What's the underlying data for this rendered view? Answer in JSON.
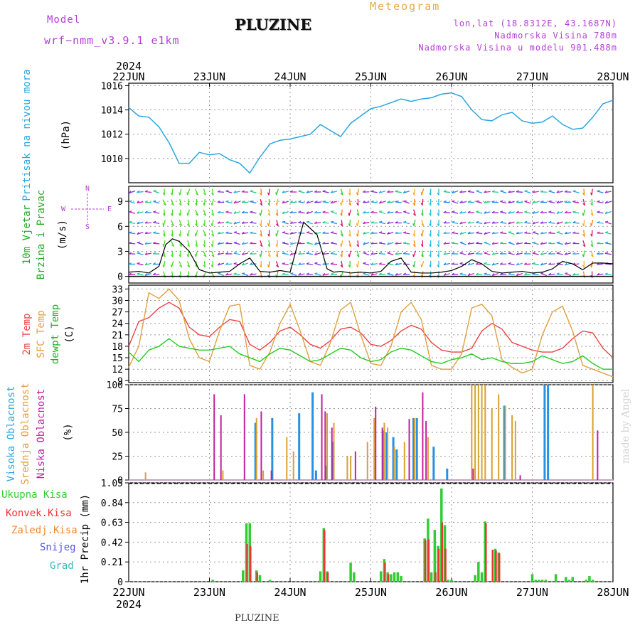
{
  "header": {
    "model_label": "Model",
    "model_run": "wrf−nmm_v3.9.1  e1km",
    "meteogram_label": "Meteogram",
    "station_title": "PLUZINE",
    "lonlat": "lon,lat (18.8312E, 43.1687N)",
    "altitude": "Nadmorska Visina 780m",
    "model_altitude": "Nadmorska Visina u modelu 901.488m"
  },
  "footer": {
    "station": "PLUZINE"
  },
  "watermark": "made by Angel",
  "time_axis": {
    "year": "2024",
    "ticks": [
      "22JUN",
      "23JUN",
      "24JUN",
      "25JUN",
      "26JUN",
      "27JUN",
      "28JUN"
    ],
    "start": "2024-06-22T00:00",
    "end": "2024-06-28T00:00"
  },
  "colors": {
    "pressure": "#2aa7e0",
    "wind_green": "#22cc22",
    "wind_black": "#000000",
    "wind_red": "#ff3333",
    "temp_2m": "#ee4444",
    "temp_sfc": "#e0a040",
    "temp_dew": "#22cc22",
    "cloud_high": "#2a90e0",
    "cloud_mid": "#d8a030",
    "cloud_low": "#c020a0",
    "precip_total": "#33cc33",
    "precip_conv": "#ee3333",
    "precip_frozen": "#ee8833",
    "precip_snow": "#5555dd",
    "precip_graupel": "#33bbbb",
    "grid": "#999999"
  },
  "panels": {
    "pressure": {
      "label": "Pritisak na nivou mora",
      "unit": "(hPa)"
    },
    "wind": {
      "label1": "10m Vjetar",
      "label2": "Brzina i Pravac",
      "unit": "(m/s)",
      "rose_n": "N",
      "rose_s": "S",
      "rose_e": "E",
      "rose_w": "W"
    },
    "temp": {
      "label1": "2m Temp",
      "label2": "SFC Temp",
      "label3": "dewpt Temp",
      "unit": "(C)"
    },
    "cloud": {
      "label1": "Visoka Oblacnost",
      "label2": "Srednja Oblacnost",
      "label3": "Niska Oblacnost",
      "unit": "(%)"
    },
    "precip": {
      "label_total": "Ukupna Kisa",
      "label_conv": "Konvek.Kisa",
      "label_frozen": "Zaledj.Kisa",
      "label_snow": "Snijeg",
      "label_graupel": "Grad",
      "unit": "1hr Precip (mm)"
    }
  },
  "chart_data": [
    {
      "type": "line",
      "title": "Pritisak na nivou mora",
      "ylabel": "(hPa)",
      "ylim": [
        1008,
        1016.2
      ],
      "yticks": [
        "1010",
        "1012",
        "1014",
        "1016"
      ],
      "series": [
        {
          "name": "Pritisak na nivou mora",
          "x_hours": [
            0,
            3,
            6,
            9,
            12,
            15,
            18,
            21,
            24,
            27,
            30,
            33,
            36,
            39,
            42,
            45,
            48,
            51,
            54,
            57,
            60,
            63,
            66,
            69,
            72,
            75,
            78,
            81,
            84,
            87,
            90,
            93,
            96,
            99,
            102,
            105,
            108,
            111,
            114,
            117,
            120,
            123,
            126,
            129,
            132,
            135,
            138,
            141,
            144
          ],
          "values": [
            1014.2,
            1013.5,
            1013.4,
            1012.6,
            1011.3,
            1009.6,
            1009.6,
            1010.5,
            1010.3,
            1010.4,
            1009.9,
            1009.6,
            1008.8,
            1010.1,
            1011.2,
            1011.5,
            1011.6,
            1011.8,
            1012.0,
            1012.8,
            1012.3,
            1011.8,
            1012.9,
            1013.5,
            1014.1,
            1014.3,
            1014.6,
            1014.9,
            1014.7,
            1014.9,
            1015.0,
            1015.3,
            1015.4,
            1015.1,
            1014.0,
            1013.2,
            1013.1,
            1013.6,
            1013.8,
            1013.1,
            1012.9,
            1013.0,
            1013.5,
            1012.8,
            1012.4,
            1012.5,
            1013.4,
            1014.5,
            1014.8
          ]
        }
      ]
    },
    {
      "type": "line",
      "title": "10m Vjetar Brzina i Pravac",
      "ylabel": "(m/s)",
      "ylim": [
        -0.8,
        10.8
      ],
      "yticks": [
        "0",
        "3",
        "6",
        "9"
      ],
      "series": [
        {
          "name": "Brzina",
          "x_hours": [
            0,
            3,
            6,
            9,
            11,
            13,
            15,
            18,
            21,
            24,
            27,
            30,
            33,
            36,
            39,
            42,
            45,
            48,
            52,
            56,
            59,
            61,
            63,
            66,
            69,
            72,
            75,
            78,
            81,
            84,
            87,
            90,
            93,
            96,
            99,
            102,
            105,
            108,
            111,
            114,
            117,
            120,
            123,
            126,
            129,
            132,
            135,
            138,
            141,
            144
          ],
          "values": [
            0.5,
            0.6,
            0.4,
            1.2,
            3.8,
            4.5,
            4.2,
            3.0,
            0.8,
            0.4,
            0.5,
            0.6,
            1.5,
            2.2,
            0.6,
            0.5,
            0.7,
            0.5,
            6.5,
            5.0,
            0.9,
            0.5,
            0.6,
            0.4,
            0.5,
            0.4,
            0.6,
            1.8,
            2.2,
            0.5,
            0.4,
            0.4,
            0.5,
            0.7,
            1.2,
            2.0,
            1.5,
            0.6,
            0.4,
            0.5,
            0.6,
            0.4,
            0.5,
            0.9,
            1.8,
            1.5,
            0.8,
            1.6,
            1.6,
            1.5
          ]
        }
      ]
    },
    {
      "type": "line",
      "title": "2m Temp / SFC Temp / dewpt Temp",
      "ylabel": "(C)",
      "ylim": [
        8.5,
        34
      ],
      "yticks": [
        "9",
        "12",
        "15",
        "18",
        "21",
        "24",
        "27",
        "30",
        "33"
      ],
      "series": [
        {
          "name": "2m Temp",
          "x_hours": [
            0,
            3,
            6,
            9,
            12,
            15,
            18,
            21,
            24,
            27,
            30,
            33,
            36,
            39,
            42,
            45,
            48,
            51,
            54,
            57,
            60,
            63,
            66,
            69,
            72,
            75,
            78,
            81,
            84,
            87,
            90,
            93,
            96,
            99,
            102,
            105,
            108,
            111,
            114,
            117,
            120,
            123,
            126,
            129,
            132,
            135,
            138,
            141,
            144
          ],
          "values": [
            18.0,
            24.5,
            25.5,
            28.0,
            29.5,
            28.0,
            23.0,
            21.0,
            20.5,
            23.0,
            25.0,
            24.5,
            18.5,
            17.0,
            19.0,
            22.0,
            23.0,
            21.0,
            18.5,
            17.5,
            19.5,
            22.5,
            23.0,
            21.5,
            18.5,
            18.0,
            19.5,
            22.0,
            23.5,
            22.5,
            19.0,
            17.0,
            16.5,
            16.5,
            17.5,
            22.0,
            24.0,
            22.5,
            19.0,
            18.0,
            17.0,
            16.5,
            16.5,
            17.5,
            20.0,
            22.0,
            21.5,
            17.5,
            15.0
          ]
        },
        {
          "name": "SFC Temp",
          "x_hours": [
            0,
            3,
            6,
            9,
            12,
            15,
            18,
            21,
            24,
            27,
            30,
            33,
            36,
            39,
            42,
            45,
            48,
            51,
            54,
            57,
            60,
            63,
            66,
            69,
            72,
            75,
            78,
            81,
            84,
            87,
            90,
            93,
            96,
            99,
            102,
            105,
            108,
            111,
            114,
            117,
            120,
            123,
            126,
            129,
            132,
            135,
            138,
            141,
            144
          ],
          "values": [
            12.5,
            18.0,
            32.0,
            30.5,
            33.0,
            30.0,
            20.0,
            15.0,
            14.0,
            22.0,
            28.5,
            29.0,
            13.0,
            12.0,
            16.5,
            24.0,
            29.0,
            22.0,
            14.0,
            13.0,
            19.0,
            27.5,
            29.5,
            21.0,
            13.5,
            13.0,
            18.0,
            27.0,
            29.5,
            25.0,
            13.0,
            12.0,
            12.0,
            16.0,
            28.0,
            29.0,
            26.0,
            14.5,
            12.5,
            11.0,
            12.0,
            21.0,
            27.0,
            28.5,
            22.0,
            13.0,
            12.0,
            11.0,
            10.0
          ]
        },
        {
          "name": "dewpt Temp",
          "x_hours": [
            0,
            3,
            6,
            9,
            12,
            15,
            18,
            21,
            24,
            27,
            30,
            33,
            36,
            39,
            42,
            45,
            48,
            51,
            54,
            57,
            60,
            63,
            66,
            69,
            72,
            75,
            78,
            81,
            84,
            87,
            90,
            93,
            96,
            99,
            102,
            105,
            108,
            111,
            114,
            117,
            120,
            123,
            126,
            129,
            132,
            135,
            138,
            141,
            144
          ],
          "values": [
            16.5,
            14.0,
            17.0,
            18.0,
            20.0,
            18.0,
            17.5,
            17.0,
            17.0,
            17.5,
            18.0,
            16.0,
            15.0,
            14.0,
            16.0,
            17.5,
            17.0,
            15.5,
            14.0,
            14.5,
            16.0,
            17.5,
            17.0,
            15.0,
            14.0,
            14.5,
            16.5,
            17.5,
            17.0,
            15.5,
            14.0,
            13.5,
            14.5,
            15.0,
            16.0,
            14.5,
            15.0,
            14.0,
            13.5,
            13.5,
            14.0,
            15.5,
            14.5,
            13.5,
            14.0,
            15.5,
            13.5,
            12.0,
            12.0
          ]
        }
      ]
    },
    {
      "type": "bar",
      "title": "Visoka / Srednja / Niska Oblacnost",
      "ylabel": "(%)",
      "ylim": [
        0,
        100
      ],
      "yticks": [
        "0",
        "25",
        "50",
        "75",
        "100"
      ],
      "series": [
        {
          "name": "Visoka Oblacnost",
          "x_hours": [
            38,
            43,
            51,
            55,
            56,
            59,
            61,
            76,
            77,
            79,
            80,
            85,
            86,
            91,
            95,
            112,
            125,
            124
          ],
          "values": [
            60,
            65,
            70,
            92,
            10,
            15,
            40,
            52,
            50,
            45,
            32,
            65,
            65,
            35,
            12,
            78,
            100,
            100
          ]
        },
        {
          "name": "Srednja Oblacnost",
          "x_hours": [
            5,
            28,
            38,
            40,
            47,
            49,
            59,
            61,
            65,
            66,
            71,
            73,
            76,
            77,
            79,
            82,
            85,
            89,
            102,
            103,
            104,
            105,
            106,
            108,
            110,
            112,
            114,
            115,
            138
          ],
          "values": [
            8,
            10,
            65,
            10,
            45,
            30,
            70,
            60,
            25,
            25,
            40,
            65,
            60,
            55,
            35,
            40,
            65,
            45,
            100,
            100,
            100,
            100,
            100,
            75,
            90,
            78,
            68,
            62,
            100
          ]
        },
        {
          "name": "Niska Oblacnost",
          "x_hours": [
            25,
            27,
            34,
            39,
            42,
            57,
            58,
            60,
            67,
            73,
            75,
            83,
            87,
            88,
            102,
            116,
            139
          ],
          "values": [
            90,
            68,
            90,
            72,
            10,
            90,
            72,
            55,
            30,
            77,
            55,
            64,
            92,
            62,
            12,
            5,
            52
          ]
        }
      ]
    },
    {
      "type": "bar",
      "title": "1hr Precip",
      "ylabel": "1hr Precip (mm)",
      "ylim": [
        0,
        1.05
      ],
      "yticks": [
        "0",
        "0.21",
        "0.42",
        "0.63",
        "0.84",
        "1.05"
      ],
      "series": [
        {
          "name": "Ukupna Kisa",
          "x_hours": [
            25,
            34,
            35,
            36,
            38,
            39,
            42,
            57,
            58,
            59,
            66,
            67,
            75,
            76,
            77,
            78,
            79,
            80,
            81,
            88,
            89,
            90,
            91,
            92,
            93,
            94,
            95,
            96,
            103,
            104,
            105,
            106,
            109,
            110,
            120,
            121,
            122,
            123,
            124,
            127,
            130,
            131,
            132,
            136,
            137,
            138
          ],
          "values": [
            0.02,
            0.12,
            0.62,
            0.62,
            0.12,
            0.07,
            0.02,
            0.11,
            0.57,
            0.11,
            0.2,
            0.1,
            0.11,
            0.24,
            0.1,
            0.08,
            0.1,
            0.1,
            0.06,
            0.46,
            0.67,
            0.1,
            0.55,
            0.38,
            0.99,
            0.6,
            0.02,
            0.02,
            0.07,
            0.21,
            0.1,
            0.64,
            0.35,
            0.31,
            0.08,
            0.02,
            0.02,
            0.02,
            0.02,
            0.08,
            0.05,
            0.02,
            0.05,
            0.02,
            0.06,
            0.02
          ]
        },
        {
          "name": "Konvek.Kisa",
          "x_hours": [
            35,
            36,
            38,
            58,
            59,
            76,
            77,
            88,
            89,
            91,
            92,
            93,
            94,
            106,
            108,
            109,
            110
          ],
          "values": [
            0.4,
            0.38,
            0.1,
            0.55,
            0.1,
            0.2,
            0.08,
            0.44,
            0.45,
            0.1,
            0.35,
            0.63,
            0.35,
            0.62,
            0.34,
            0.33,
            0.3
          ]
        }
      ]
    }
  ]
}
